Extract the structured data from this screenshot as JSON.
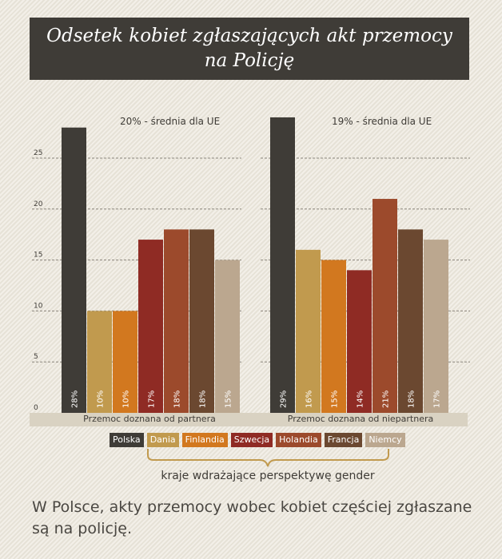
{
  "title": {
    "line1": "Odsetek kobiet zgłaszających akt przemocy",
    "line2": "na Policję"
  },
  "chart_data": {
    "type": "bar",
    "ylim": [
      0,
      30
    ],
    "yticks": [
      0,
      5,
      10,
      15,
      20,
      25
    ],
    "grid": true,
    "groups": [
      {
        "label": "Przemoc doznana od partnera",
        "annotation": "20% - średnia dla UE",
        "values": [
          28,
          10,
          10,
          17,
          18,
          18,
          15
        ],
        "value_labels": [
          "28%",
          "10%",
          "10%",
          "17%",
          "18%",
          "18%",
          "15%"
        ]
      },
      {
        "label": "Przemoc doznana od niepartnera",
        "annotation": "19% - średnia dla UE",
        "values": [
          29,
          16,
          15,
          14,
          21,
          18,
          17
        ],
        "value_labels": [
          "29%",
          "16%",
          "15%",
          "14%",
          "21%",
          "18%",
          "17%"
        ]
      }
    ],
    "categories": [
      "Polska",
      "Dania",
      "Finlandia",
      "Szwecja",
      "Holandia",
      "Francja",
      "Niemcy"
    ],
    "colors": [
      "#3f3c37",
      "#c19a4e",
      "#d2781f",
      "#8f2b24",
      "#9c4a2c",
      "#6b4830",
      "#bba78f"
    ]
  },
  "legend_bracket_label": "kraje wdrażające perspektywę gender",
  "footnote": "W Polsce, akty przemocy wobec kobiet częściej zgłaszane są na policję."
}
